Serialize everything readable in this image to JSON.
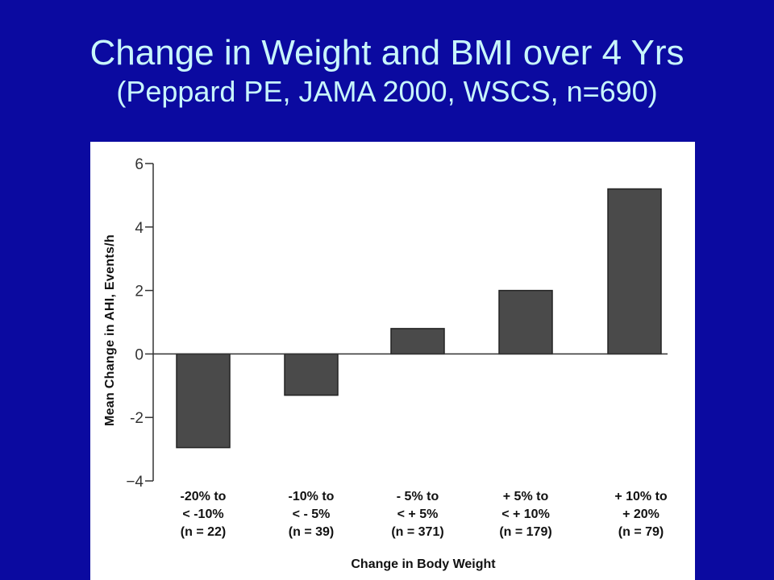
{
  "slide": {
    "title": "Change in Weight and BMI over 4 Yrs",
    "subtitle": "(Peppard PE, JAMA 2000, WSCS, n=690)"
  },
  "colors": {
    "background": "#0b0aa0",
    "title_text": "#c8f6fb",
    "bar_fill": "#4a4a4a",
    "panel": "#ffffff"
  },
  "chart_data": {
    "type": "bar",
    "title": "",
    "xlabel": "Change in Body Weight",
    "ylabel": "Mean Change in AHI, Events/h",
    "ylim": [
      -4,
      6
    ],
    "yticks": [
      {
        "value": 6,
        "label": "6"
      },
      {
        "value": 4,
        "label": "4"
      },
      {
        "value": 2,
        "label": "2"
      },
      {
        "value": 0,
        "label": "0"
      },
      {
        "value": -2,
        "label": "-2"
      },
      {
        "value": -4,
        "label": "−4"
      }
    ],
    "categories": [
      {
        "line1": "-20% to",
        "line2": "< -10%",
        "line3": "(n = 22)"
      },
      {
        "line1": "-10% to",
        "line2": "< - 5%",
        "line3": "(n = 39)"
      },
      {
        "line1": "- 5% to",
        "line2": "< + 5%",
        "line3": "(n = 371)"
      },
      {
        "line1": "+ 5% to",
        "line2": "< + 10%",
        "line3": "(n = 179)"
      },
      {
        "line1": "+ 10% to",
        "line2": "+ 20%",
        "line3": "(n = 79)"
      }
    ],
    "values": [
      -2.95,
      -1.3,
      0.8,
      2.0,
      5.2
    ],
    "grid": false,
    "legend": "none"
  }
}
